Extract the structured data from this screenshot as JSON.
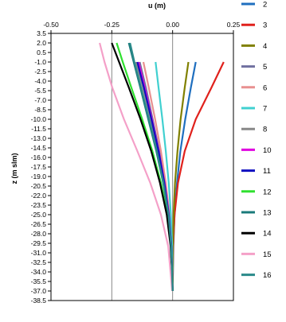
{
  "chart_data": {
    "type": "line",
    "xlabel": "u (m)",
    "ylabel": "z   (m slm)",
    "xlim": [
      -0.5,
      0.25
    ],
    "ylim": [
      -38.5,
      3.5
    ],
    "x_ticks": [
      -0.5,
      -0.25,
      0.0,
      0.25
    ],
    "x_tick_labels": [
      "-0.50",
      "-0.25",
      "0.00",
      "0.25"
    ],
    "y_ticks": [
      3.5,
      2.0,
      0.5,
      -1.0,
      -2.5,
      -4.0,
      -5.5,
      -7.0,
      -8.5,
      -10.0,
      -11.5,
      -13.0,
      -14.5,
      -16.0,
      -17.5,
      -19.0,
      -20.5,
      -22.0,
      -23.5,
      -25.0,
      -26.5,
      -28.0,
      -29.5,
      -31.0,
      -32.5,
      -34.0,
      -35.5,
      -37.0,
      -38.5
    ],
    "y_tick_labels": [
      "3.5",
      "2.0",
      "0.5",
      "-1.0",
      "-2.5",
      "-4.0",
      "-5.5",
      "-7.0",
      "-8.5",
      "-10.0",
      "-11.5",
      "-13.0",
      "-14.5",
      "-16.0",
      "-17.5",
      "-19.0",
      "-20.5",
      "-22.0",
      "-23.5",
      "-25.0",
      "-26.5",
      "-28.0",
      "-29.5",
      "-31.0",
      "-32.5",
      "-34.0",
      "-35.5",
      "-37.0",
      "-38.5"
    ],
    "grid": "vertical gridlines at x ticks",
    "legend_position": "right",
    "series": [
      {
        "name": "2",
        "color": "#1F6FBF",
        "z": [
          -1,
          -5,
          -10,
          -15,
          -20,
          -25,
          -30,
          -37
        ],
        "x": [
          0.095,
          0.075,
          0.052,
          0.032,
          0.018,
          0.008,
          0.003,
          0.0
        ]
      },
      {
        "name": "3",
        "color": "#E0211C",
        "z": [
          -1,
          -5,
          -10,
          -15,
          -20,
          -25,
          -30,
          -37
        ],
        "x": [
          0.21,
          0.16,
          0.095,
          0.05,
          0.022,
          0.008,
          0.002,
          0.0
        ]
      },
      {
        "name": "4",
        "color": "#808000",
        "z": [
          -1,
          -5,
          -10,
          -15,
          -20,
          -25,
          -30,
          -37
        ],
        "x": [
          0.065,
          0.05,
          0.033,
          0.02,
          0.01,
          0.004,
          0.001,
          0.0
        ]
      },
      {
        "name": "5",
        "color": "#7070A0",
        "z": [
          -1,
          -5,
          -10,
          -15,
          -20,
          -25,
          -30,
          -37
        ],
        "x": [
          -0.135,
          -0.11,
          -0.082,
          -0.055,
          -0.032,
          -0.015,
          -0.005,
          0.0
        ]
      },
      {
        "name": "6",
        "color": "#E89090",
        "z": [
          -1,
          -5,
          -10,
          -15,
          -20,
          -25,
          -30,
          -37
        ],
        "x": [
          -0.12,
          -0.098,
          -0.072,
          -0.048,
          -0.028,
          -0.013,
          -0.004,
          0.0
        ]
      },
      {
        "name": "7",
        "color": "#40D0D0",
        "z": [
          -1,
          -5,
          -10,
          -15,
          -20,
          -25,
          -30,
          -37
        ],
        "x": [
          -0.07,
          -0.058,
          -0.042,
          -0.028,
          -0.016,
          -0.007,
          -0.002,
          0.0
        ]
      },
      {
        "name": "8",
        "color": "#888888",
        "z": [
          -1,
          -5,
          -10,
          -15,
          -20,
          -25,
          -30,
          -37
        ],
        "x": [
          -0.15,
          -0.122,
          -0.09,
          -0.06,
          -0.035,
          -0.016,
          -0.005,
          0.0
        ]
      },
      {
        "name": "10",
        "color": "#E000E0",
        "z": [
          -1,
          -5,
          -10,
          -15,
          -20,
          -25,
          -30,
          -37
        ],
        "x": [
          -0.14,
          -0.115,
          -0.085,
          -0.057,
          -0.033,
          -0.015,
          -0.005,
          0.0
        ]
      },
      {
        "name": "11",
        "color": "#1010C0",
        "z": [
          -1,
          -5,
          -10,
          -15,
          -20,
          -25,
          -30,
          -37
        ],
        "x": [
          -0.145,
          -0.118,
          -0.087,
          -0.058,
          -0.034,
          -0.016,
          -0.005,
          0.0
        ]
      },
      {
        "name": "12",
        "color": "#30E030",
        "z": [
          2,
          -1,
          -5,
          -10,
          -15,
          -20,
          -25,
          -30,
          -37
        ],
        "x": [
          -0.23,
          -0.205,
          -0.17,
          -0.125,
          -0.083,
          -0.048,
          -0.022,
          -0.007,
          0.0
        ]
      },
      {
        "name": "13",
        "color": "#1A7A7A",
        "z": [
          2,
          -1,
          -5,
          -10,
          -15,
          -20,
          -25,
          -30,
          -37
        ],
        "x": [
          -0.18,
          -0.16,
          -0.133,
          -0.1,
          -0.067,
          -0.039,
          -0.018,
          -0.006,
          0.0
        ]
      },
      {
        "name": "14",
        "color": "#000000",
        "z": [
          2,
          -1,
          -5,
          -10,
          -15,
          -20,
          -25,
          -30,
          -37
        ],
        "x": [
          -0.25,
          -0.22,
          -0.18,
          -0.132,
          -0.088,
          -0.052,
          -0.024,
          -0.008,
          0.0
        ]
      },
      {
        "name": "15",
        "color": "#F4A0C8",
        "z": [
          2,
          -1,
          -5,
          -10,
          -15,
          -20,
          -25,
          -30,
          -37
        ],
        "x": [
          -0.3,
          -0.28,
          -0.248,
          -0.2,
          -0.145,
          -0.092,
          -0.048,
          -0.018,
          -0.002
        ]
      },
      {
        "name": "16",
        "color": "#2A8A8A",
        "z": [
          2,
          -1,
          -5,
          -10,
          -15,
          -20,
          -25,
          -30,
          -37
        ],
        "x": [
          -0.175,
          -0.157,
          -0.13,
          -0.097,
          -0.065,
          -0.038,
          -0.017,
          -0.006,
          0.0
        ]
      }
    ]
  }
}
